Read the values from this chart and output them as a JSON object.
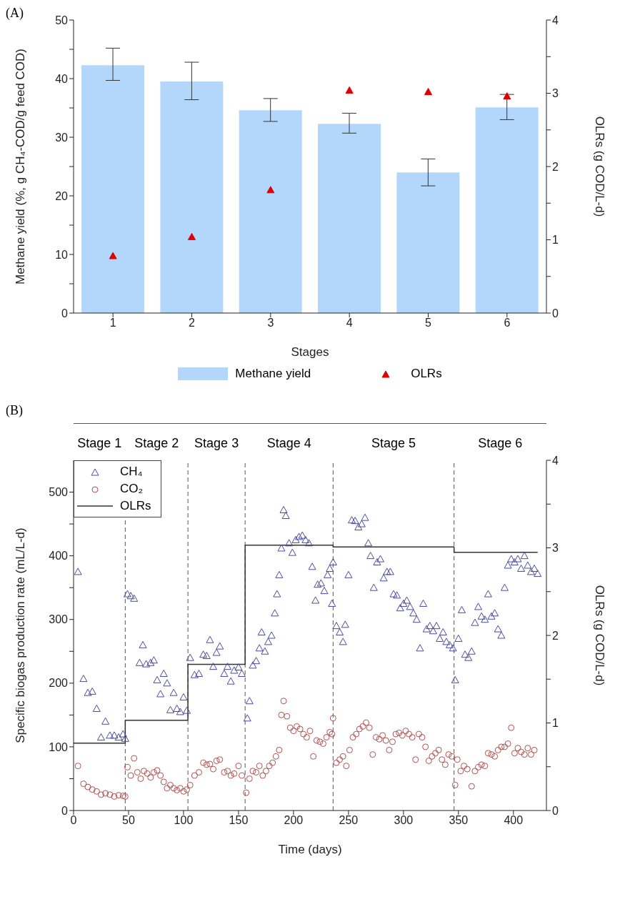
{
  "chart_data": [
    {
      "type": "bar",
      "xlabel": "Stages",
      "ylabel": "Methane yield (%, g CH₄-COD/g feed COD)",
      "y2label": "OLRs (g COD/L-d)",
      "annotations": [
        "(A)"
      ],
      "categories": [
        "1",
        "2",
        "3",
        "4",
        "5",
        "6"
      ],
      "series": [
        {
          "name": "Methane yield",
          "type": "bar",
          "color": "#b3d7fb",
          "values": [
            42.3,
            39.5,
            34.6,
            32.3,
            24.0,
            35.1
          ],
          "errors": [
            [
              39.7,
              45.2
            ],
            [
              36.4,
              42.8
            ],
            [
              32.7,
              36.6
            ],
            [
              30.7,
              34.1
            ],
            [
              21.7,
              26.3
            ],
            [
              33.0,
              37.3
            ]
          ]
        },
        {
          "name": "OLRs",
          "type": "scatter",
          "axis": "y2",
          "marker": "triangle",
          "color": "#e00000",
          "values": [
            0.78,
            1.04,
            1.68,
            3.04,
            3.02,
            2.96
          ]
        }
      ],
      "ylim": [
        0,
        50
      ],
      "yticks": [
        0,
        {
          "value": 5,
          "label": null
        },
        10,
        {
          "value": 15,
          "label": null
        },
        20,
        {
          "value": 25,
          "label": null
        },
        30,
        {
          "value": 35,
          "label": null
        },
        40,
        {
          "value": 45,
          "label": null
        },
        50
      ],
      "y2lim": [
        0,
        4
      ],
      "y2ticks": [
        0,
        {
          "value": 0.5,
          "label": null
        },
        1,
        {
          "value": 1.5,
          "label": null
        },
        2,
        {
          "value": 2.5,
          "label": null
        },
        3,
        {
          "value": 3.5,
          "label": null
        },
        4
      ],
      "grid": false,
      "legend": "bottom"
    },
    {
      "type": "scatter",
      "xlabel": "Time (days)",
      "ylabel": "Specific biogas production rate (mL/L-d)",
      "y2label": "OLRs (g COD/L-d)",
      "annotations": [
        "(B)",
        "Stage 1",
        "Stage 2",
        "Stage 3",
        "Stage 4",
        "Stage 5",
        "Stage 6"
      ],
      "series": [
        {
          "name": "CH₄",
          "type": "scatter",
          "marker": "triangle",
          "color": "#4a4aa0",
          "x": [
            4,
            9,
            13,
            17,
            21,
            25,
            29,
            33,
            37,
            41,
            45,
            47,
            49,
            52,
            55,
            60,
            63,
            66,
            70,
            73,
            76,
            79,
            82,
            85,
            88,
            91,
            94,
            97,
            100,
            103,
            106,
            110,
            114,
            118,
            121,
            124,
            127,
            130,
            133,
            137,
            140,
            143,
            146,
            150,
            153,
            158,
            160,
            163,
            166,
            169,
            171,
            174,
            177,
            180,
            183,
            185,
            187,
            189,
            191,
            193,
            196,
            199,
            202,
            205,
            208,
            211,
            214,
            217,
            220,
            222,
            225,
            228,
            231,
            233,
            235,
            236,
            239,
            242,
            245,
            247,
            250,
            253,
            256,
            259,
            262,
            265,
            268,
            270,
            273,
            276,
            279,
            282,
            285,
            288,
            291,
            294,
            297,
            300,
            303,
            306,
            309,
            312,
            315,
            318,
            321,
            324,
            327,
            330,
            333,
            336,
            339,
            342,
            345,
            347,
            350,
            353,
            356,
            359,
            362,
            365,
            368,
            371,
            374,
            377,
            380,
            383,
            386,
            389,
            392,
            395,
            398,
            401,
            404,
            407,
            410,
            413,
            416,
            419,
            422
          ],
          "values": [
            375,
            207,
            185,
            187,
            160,
            115,
            140,
            118,
            118,
            115,
            120,
            113,
            340,
            337,
            333,
            232,
            260,
            230,
            232,
            236,
            205,
            183,
            215,
            200,
            158,
            185,
            160,
            155,
            178,
            157,
            240,
            213,
            215,
            245,
            243,
            268,
            226,
            248,
            258,
            215,
            226,
            203,
            220,
            225,
            215,
            145,
            172,
            228,
            235,
            255,
            280,
            250,
            265,
            275,
            310,
            340,
            370,
            412,
            472,
            463,
            420,
            405,
            425,
            430,
            432,
            425,
            420,
            383,
            330,
            355,
            357,
            345,
            370,
            380,
            325,
            390,
            290,
            280,
            265,
            292,
            370,
            456,
            455,
            445,
            450,
            460,
            420,
            400,
            350,
            390,
            395,
            365,
            375,
            375,
            340,
            338,
            318,
            325,
            330,
            320,
            310,
            300,
            255,
            325,
            285,
            290,
            282,
            290,
            270,
            280,
            265,
            260,
            255,
            205,
            270,
            315,
            245,
            240,
            250,
            295,
            320,
            305,
            300,
            340,
            305,
            310,
            285,
            275,
            350,
            385,
            395,
            390,
            395,
            380,
            400,
            385,
            375,
            380,
            372
          ]
        },
        {
          "name": "CO₂",
          "type": "scatter",
          "marker": "circle",
          "color": "#b05050",
          "x": [
            4,
            9,
            13,
            17,
            21,
            25,
            29,
            33,
            37,
            41,
            45,
            47,
            49,
            52,
            55,
            58,
            61,
            64,
            67,
            70,
            73,
            76,
            79,
            82,
            85,
            88,
            91,
            94,
            97,
            100,
            103,
            106,
            110,
            114,
            118,
            121,
            124,
            127,
            130,
            133,
            137,
            140,
            143,
            146,
            150,
            153,
            157,
            160,
            163,
            166,
            169,
            172,
            175,
            178,
            181,
            184,
            187,
            189,
            191,
            194,
            197,
            200,
            203,
            206,
            209,
            212,
            215,
            218,
            221,
            224,
            227,
            230,
            233,
            235,
            236,
            239,
            242,
            245,
            248,
            251,
            254,
            257,
            260,
            263,
            266,
            269,
            272,
            275,
            278,
            281,
            284,
            287,
            290,
            293,
            296,
            299,
            302,
            305,
            308,
            311,
            314,
            317,
            320,
            323,
            326,
            329,
            332,
            335,
            338,
            341,
            344,
            347,
            349,
            352,
            355,
            358,
            362,
            365,
            368,
            371,
            374,
            377,
            380,
            383,
            386,
            389,
            392,
            395,
            398,
            401,
            404,
            407,
            410,
            413,
            416,
            419
          ],
          "values": [
            70,
            42,
            37,
            33,
            30,
            25,
            27,
            25,
            22,
            24,
            23,
            22,
            68,
            55,
            82,
            60,
            50,
            62,
            58,
            52,
            60,
            63,
            55,
            45,
            35,
            40,
            35,
            32,
            35,
            30,
            33,
            40,
            55,
            60,
            75,
            72,
            73,
            65,
            78,
            80,
            60,
            62,
            55,
            58,
            70,
            55,
            28,
            50,
            62,
            60,
            70,
            55,
            62,
            70,
            75,
            85,
            95,
            150,
            172,
            148,
            130,
            125,
            132,
            128,
            120,
            115,
            125,
            85,
            110,
            108,
            105,
            115,
            123,
            120,
            145,
            75,
            80,
            85,
            70,
            95,
            115,
            120,
            128,
            132,
            138,
            130,
            88,
            115,
            112,
            118,
            110,
            95,
            108,
            120,
            122,
            118,
            125,
            120,
            115,
            80,
            120,
            115,
            100,
            78,
            85,
            90,
            95,
            80,
            72,
            88,
            85,
            40,
            80,
            62,
            70,
            65,
            38,
            62,
            68,
            72,
            70,
            90,
            88,
            85,
            95,
            100,
            100,
            105,
            130,
            90,
            98,
            92,
            88,
            98,
            88,
            95
          ]
        },
        {
          "name": "OLRs",
          "type": "step",
          "axis": "y2",
          "color": "#333333",
          "x": [
            0,
            47,
            104,
            156,
            236,
            346,
            422
          ],
          "values": [
            0.77,
            1.03,
            1.67,
            3.03,
            3.01,
            2.95,
            2.95
          ]
        }
      ],
      "ref_lines": [
        {
          "axis": "x",
          "value": 47,
          "line_style": "dashed",
          "color": "#555555"
        },
        {
          "axis": "x",
          "value": 104,
          "line_style": "dashed",
          "color": "#555555"
        },
        {
          "axis": "x",
          "value": 156,
          "line_style": "dashed",
          "color": "#555555"
        },
        {
          "axis": "x",
          "value": 236,
          "line_style": "dashed",
          "color": "#555555"
        },
        {
          "axis": "x",
          "value": 346,
          "line_style": "dashed",
          "color": "#555555"
        }
      ],
      "xlim": [
        0,
        430
      ],
      "xticks": [
        0,
        50,
        100,
        150,
        200,
        250,
        300,
        350,
        400
      ],
      "ylim": [
        0,
        550
      ],
      "yticks": [
        0,
        {
          "value": 50,
          "label": null
        },
        100,
        {
          "value": 150,
          "label": null
        },
        200,
        {
          "value": 250,
          "label": null
        },
        300,
        {
          "value": 350,
          "label": null
        },
        400,
        {
          "value": 450,
          "label": null
        },
        500
      ],
      "y2lim": [
        0,
        4
      ],
      "y2ticks": [
        0,
        {
          "value": 0.5,
          "label": null
        },
        1,
        {
          "value": 1.5,
          "label": null
        },
        2,
        {
          "value": 2.5,
          "label": null
        },
        3,
        {
          "value": 3.5,
          "label": null
        },
        4
      ],
      "grid": false,
      "legend": "top left"
    }
  ]
}
